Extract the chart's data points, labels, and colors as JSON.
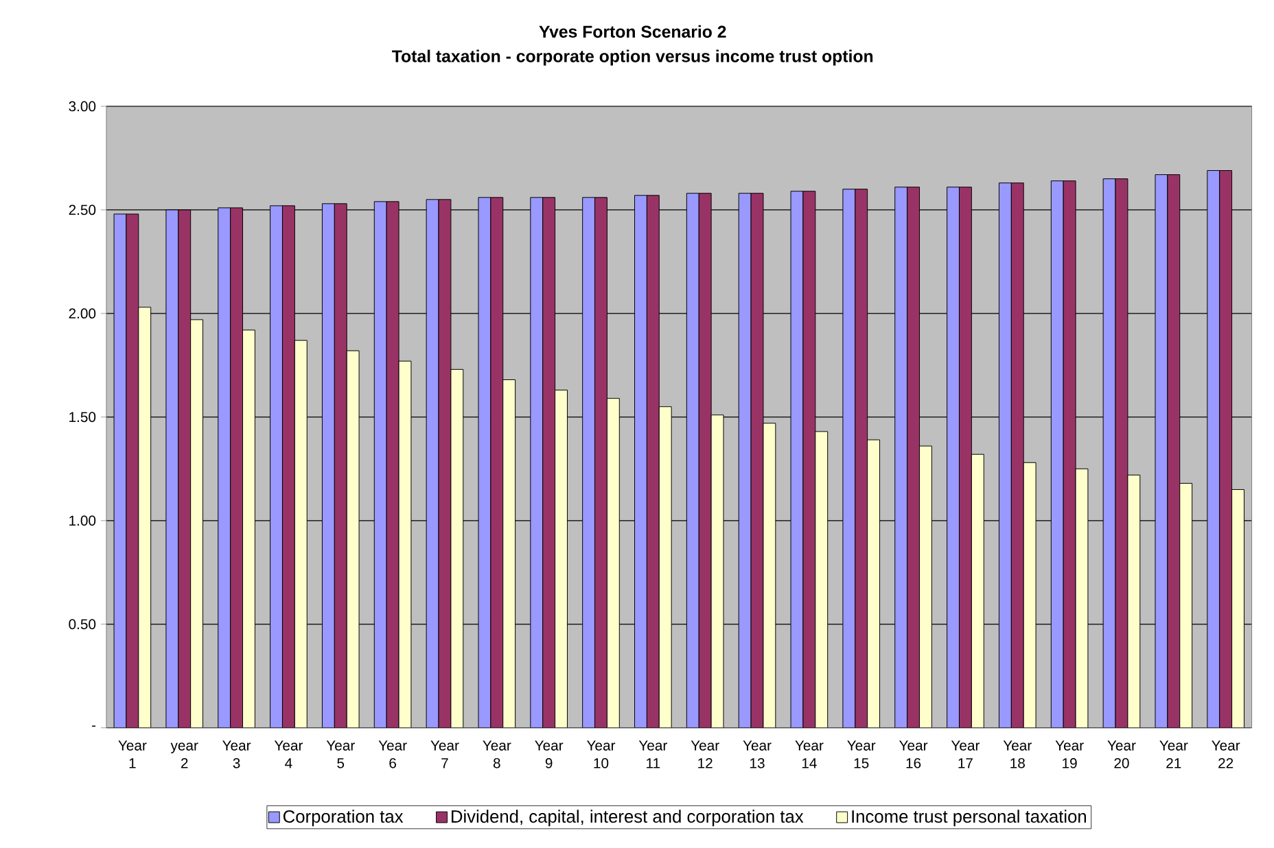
{
  "chart_data": {
    "type": "bar",
    "title": "Yves Forton Scenario 2",
    "subtitle": "Total taxation - corporate option versus income trust option",
    "categories": [
      "Year 1",
      "year 2",
      "Year 3",
      "Year 4",
      "Year 5",
      "Year 6",
      "Year 7",
      "Year 8",
      "Year 9",
      "Year 10",
      "Year 11",
      "Year 12",
      "Year 13",
      "Year 14",
      "Year 15",
      "Year 16",
      "Year 17",
      "Year 18",
      "Year 19",
      "Year 20",
      "Year 21",
      "Year 22"
    ],
    "series": [
      {
        "name": "Corporation tax",
        "color": "#9999ff",
        "values": [
          2.48,
          2.5,
          2.51,
          2.52,
          2.53,
          2.54,
          2.55,
          2.56,
          2.56,
          2.56,
          2.57,
          2.58,
          2.58,
          2.59,
          2.6,
          2.61,
          2.61,
          2.63,
          2.64,
          2.65,
          2.67,
          2.69
        ]
      },
      {
        "name": "Dividend, capital, interest and corporation tax",
        "color": "#993366",
        "values": [
          2.48,
          2.5,
          2.51,
          2.52,
          2.53,
          2.54,
          2.55,
          2.56,
          2.56,
          2.56,
          2.57,
          2.58,
          2.58,
          2.59,
          2.6,
          2.61,
          2.61,
          2.63,
          2.64,
          2.65,
          2.67,
          2.69
        ]
      },
      {
        "name": "Income trust personal taxation",
        "color": "#ffffcc",
        "values": [
          2.03,
          1.97,
          1.92,
          1.87,
          1.82,
          1.77,
          1.73,
          1.68,
          1.63,
          1.59,
          1.55,
          1.51,
          1.47,
          1.43,
          1.39,
          1.36,
          1.32,
          1.28,
          1.25,
          1.22,
          1.18,
          1.15
        ]
      }
    ],
    "ylim": [
      0,
      3
    ],
    "yticks": [
      {
        "value": 0,
        "label": "-"
      },
      {
        "value": 0.5,
        "label": "0.50"
      },
      {
        "value": 1,
        "label": "1.00"
      },
      {
        "value": 1.5,
        "label": "1.50"
      },
      {
        "value": 2,
        "label": "2.00"
      },
      {
        "value": 2.5,
        "label": "2.50"
      },
      {
        "value": 3,
        "label": "3.00"
      }
    ],
    "grid": "y",
    "legend": "bottom"
  }
}
